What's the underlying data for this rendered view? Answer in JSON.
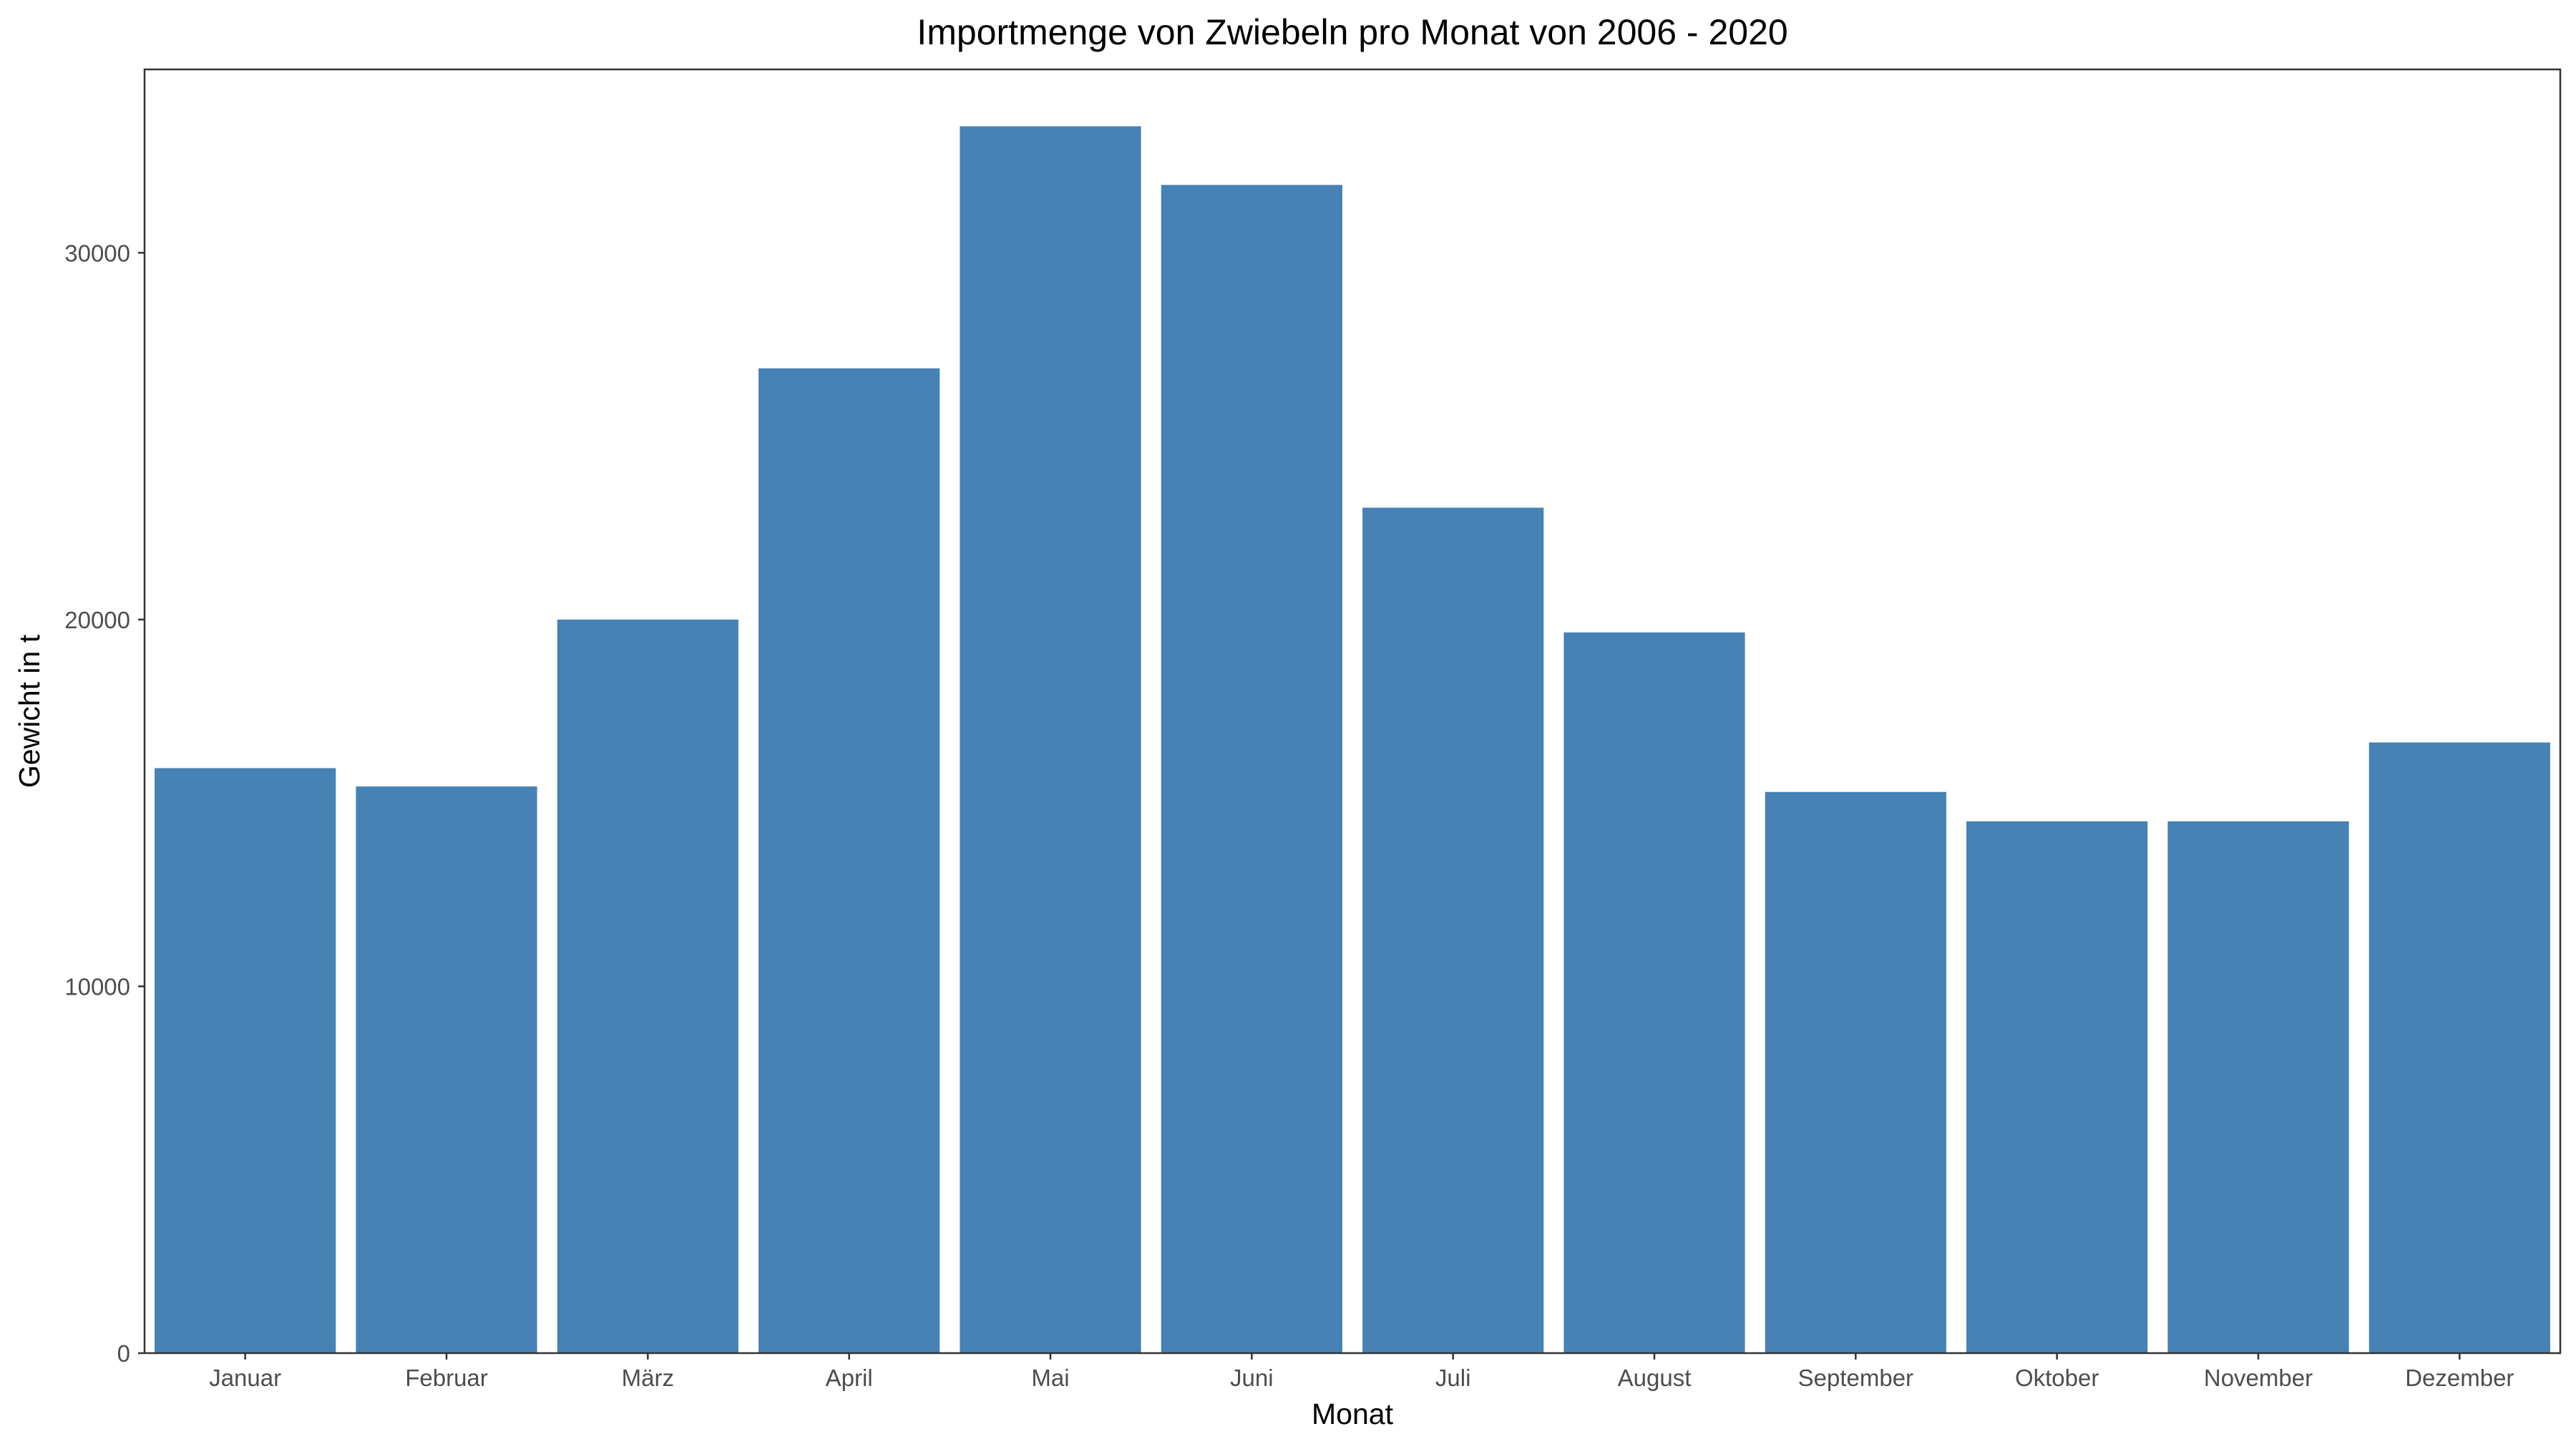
{
  "chart_data": {
    "type": "bar",
    "title": "Importmenge von Zwiebeln pro Monat von 2006 - 2020",
    "xlabel": "Monat",
    "ylabel": "Gewicht in t",
    "categories": [
      "Januar",
      "Februar",
      "März",
      "April",
      "Mai",
      "Juni",
      "Juli",
      "August",
      "September",
      "Oktober",
      "November",
      "Dezember"
    ],
    "values": [
      15950,
      15450,
      20000,
      26850,
      33450,
      31850,
      23050,
      19650,
      15300,
      14500,
      14500,
      16650
    ],
    "ylim": [
      0,
      35000
    ],
    "yticks": [
      0,
      10000,
      20000,
      30000
    ],
    "ytick_labels": [
      "0",
      "10000",
      "20000",
      "30000"
    ],
    "grid": false,
    "legend": "none",
    "colors": {
      "bar": "#4682b4",
      "panel_border": "#333333",
      "tick_text": "#4d4d4d",
      "text": "#000000"
    }
  }
}
